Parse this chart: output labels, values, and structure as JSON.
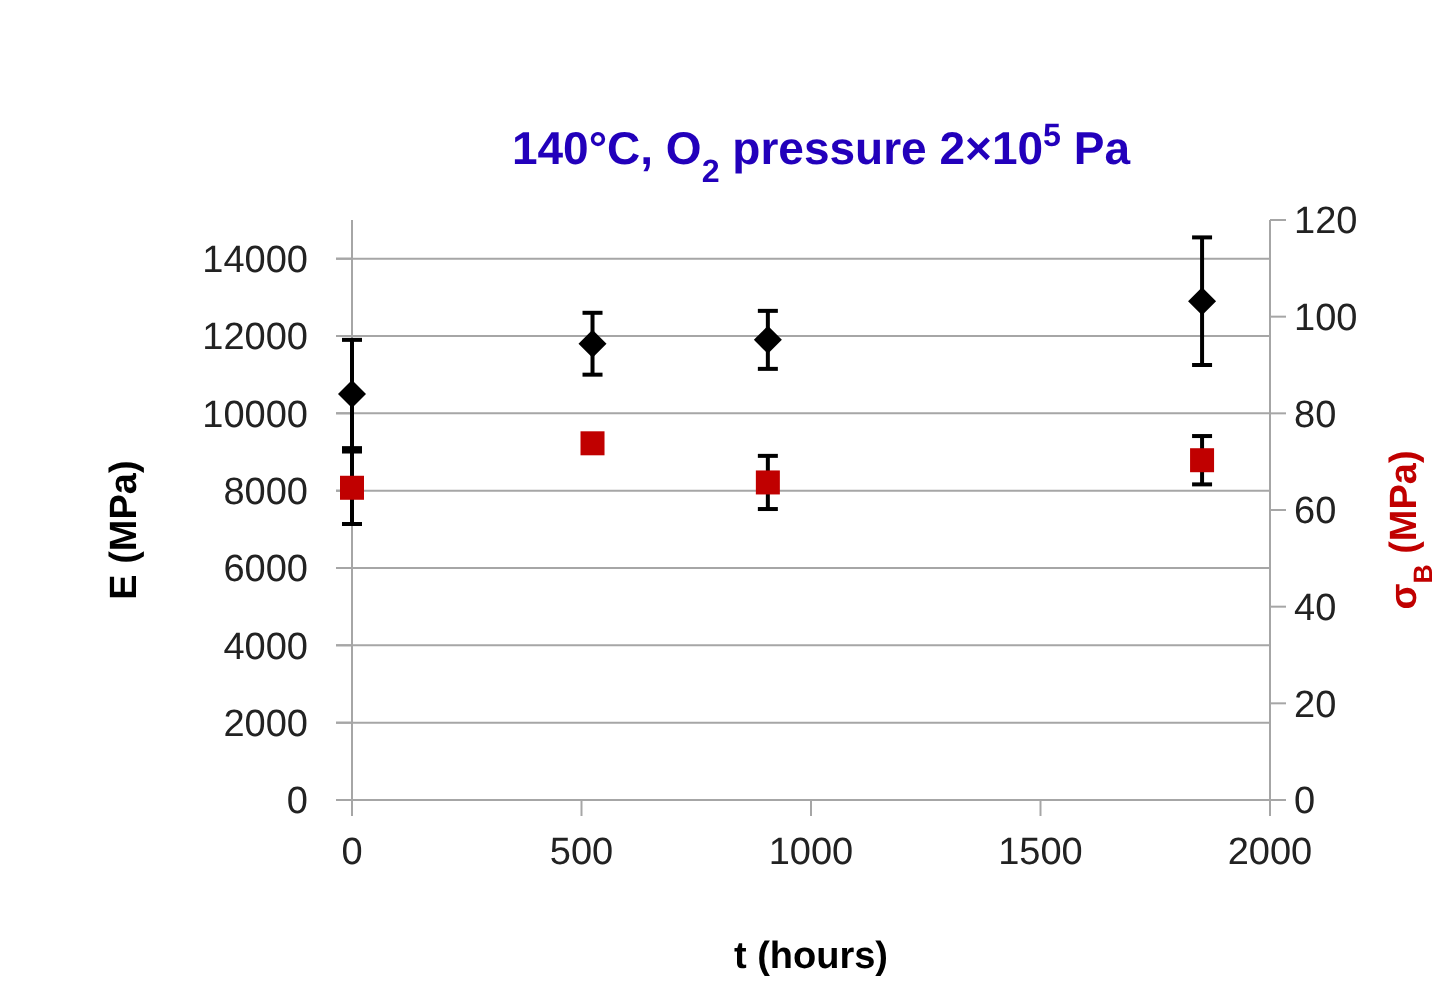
{
  "chart_data": {
    "type": "scatter",
    "title": "140°C, O$_{2}$ pressure 2×10$^{5}$ Pa",
    "xlabel": "t (hours)",
    "ylabel": "E (MPa)",
    "y2label": "σ$_{B}$ (MPa)",
    "xlim": [
      0,
      2000
    ],
    "xticks": [
      0,
      500,
      1000,
      1500,
      2000
    ],
    "ylim": [
      0,
      15000
    ],
    "yticks": [
      0,
      2000,
      4000,
      6000,
      8000,
      10000,
      12000,
      14000
    ],
    "y2lim": [
      0,
      120
    ],
    "y2ticks": [
      0,
      20,
      40,
      60,
      80,
      100,
      120
    ],
    "grid": "y",
    "series": [
      {
        "x": [
          0,
          524,
          906,
          1852
        ],
        "values": [
          10500,
          11800,
          11900,
          12900
        ],
        "errors": [
          1400,
          800,
          750,
          1650
        ],
        "color": "#000000",
        "marker": "diamond"
      },
      {
        "x": [
          0,
          524,
          906,
          1852
        ],
        "values": [
          64.6,
          73.8,
          65.7,
          70.3
        ],
        "errors": [
          7.5,
          null,
          5.5,
          5
        ],
        "color": "#c00000",
        "marker": "square",
        "axis": "y2"
      }
    ]
  }
}
